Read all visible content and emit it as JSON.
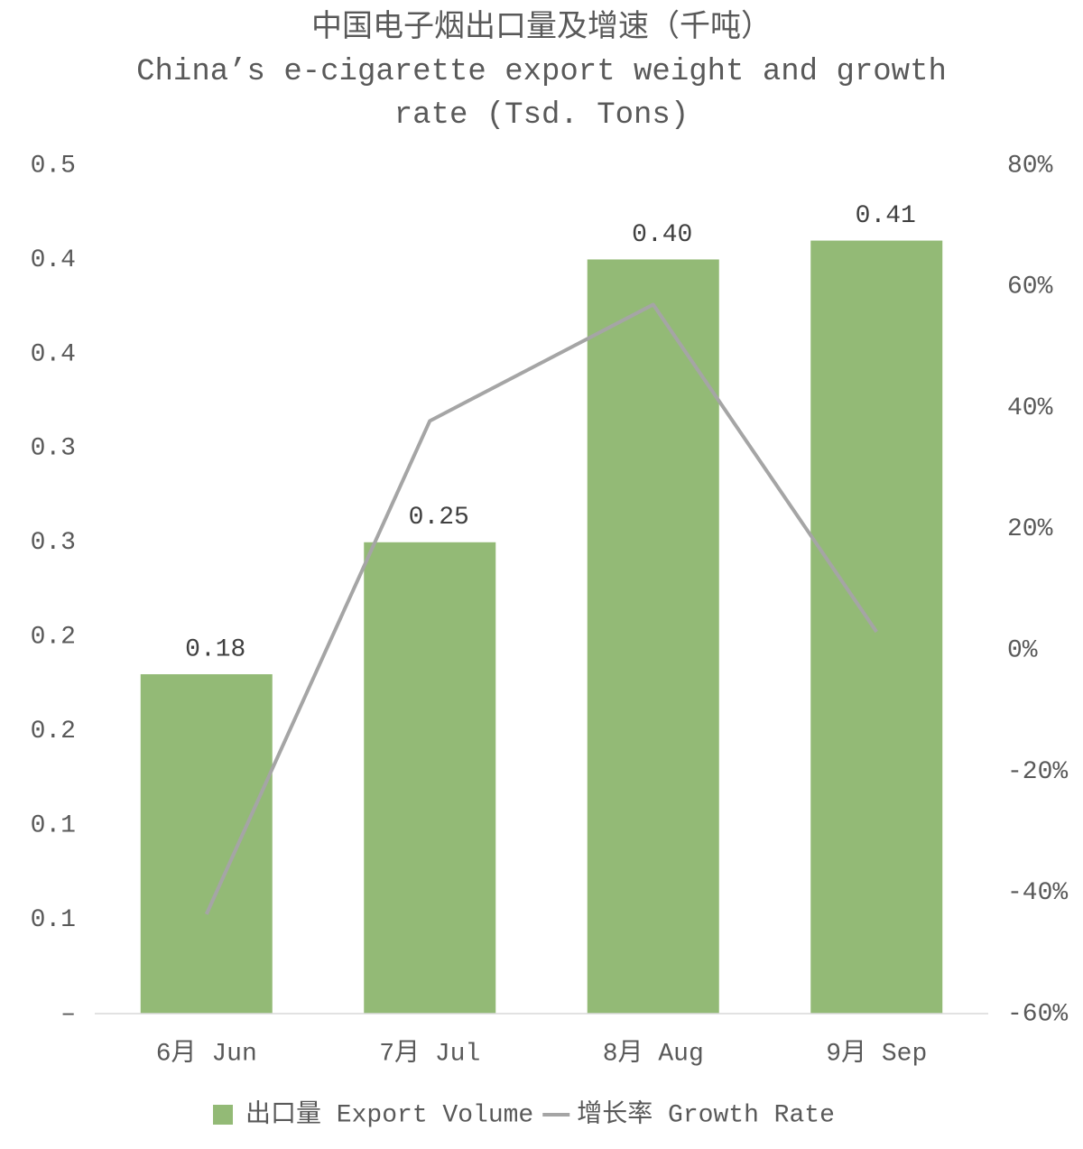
{
  "chart_data": {
    "type": "bar-line",
    "title": "中国电子烟出口量及增速（千吨）",
    "subtitle": "China’s e-cigarette export weight and growth rate (Tsd. Tons)",
    "categories": [
      "6月 Jun",
      "7月 Jul",
      "8月 Aug",
      "9月 Sep"
    ],
    "series": [
      {
        "name": "出口量 Export Volume",
        "type": "bar",
        "color": "#93ba76",
        "values": [
          0.18,
          0.25,
          0.4,
          0.41
        ],
        "value_labels": [
          "0.18",
          "0.25",
          "0.40",
          "0.41"
        ]
      },
      {
        "name": "增长率 Growth Rate",
        "type": "line",
        "color": "#a5a5a5",
        "axis": "y2",
        "values": [
          -43.6,
          37.8,
          57.0,
          3.0
        ]
      }
    ],
    "ylim": [
      0,
      0.45
    ],
    "yticks": [
      {
        "value": 0,
        "label": "–"
      },
      {
        "value": 0.05,
        "label": "0.1"
      },
      {
        "value": 0.1,
        "label": "0.1"
      },
      {
        "value": 0.15,
        "label": "0.2"
      },
      {
        "value": 0.2,
        "label": "0.2"
      },
      {
        "value": 0.25,
        "label": "0.3"
      },
      {
        "value": 0.3,
        "label": "0.3"
      },
      {
        "value": 0.35,
        "label": "0.4"
      },
      {
        "value": 0.4,
        "label": "0.4"
      },
      {
        "value": 0.45,
        "label": "0.5"
      }
    ],
    "y2lim": [
      -60,
      80
    ],
    "y2ticks": [
      {
        "value": -60,
        "label": "-60%"
      },
      {
        "value": -40,
        "label": "-40%"
      },
      {
        "value": -20,
        "label": "-20%"
      },
      {
        "value": 0,
        "label": "0%"
      },
      {
        "value": 20,
        "label": "20%"
      },
      {
        "value": 40,
        "label": "40%"
      },
      {
        "value": 60,
        "label": "60%"
      },
      {
        "value": 80,
        "label": "80%"
      }
    ],
    "legend": "bottom"
  }
}
